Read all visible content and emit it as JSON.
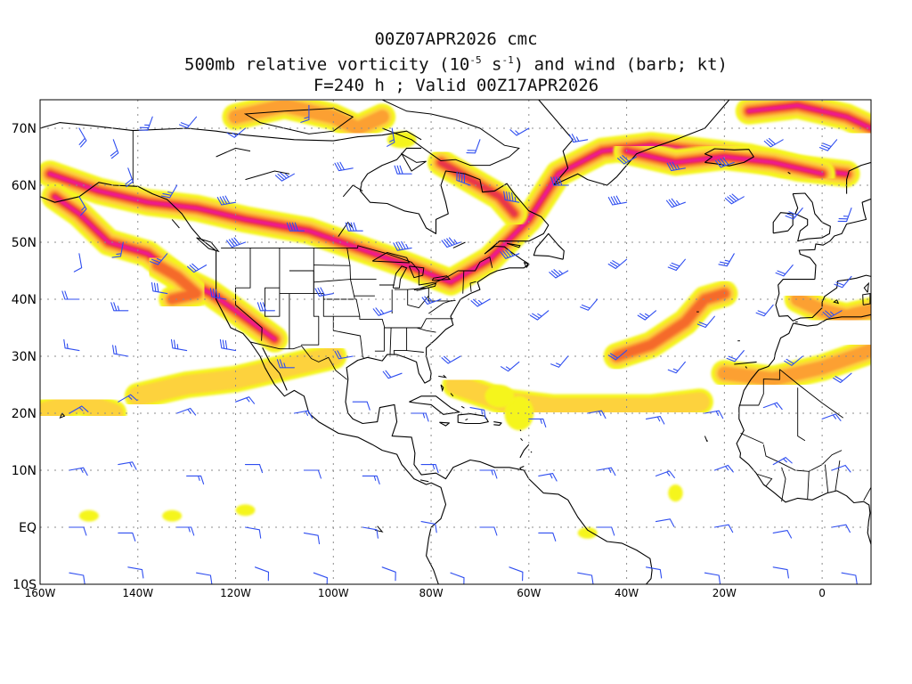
{
  "title": {
    "line1": "00Z07APR2026 cmc",
    "line2_pre": "500mb relative vorticity (10",
    "line2_sup1": "-5",
    "line2_mid": " s",
    "line2_sup2": "-1",
    "line2_post": ") and wind (barb; kt)",
    "line3": "F=240 h ; Valid 00Z17APR2026"
  },
  "map": {
    "lon_range": [
      -160,
      10
    ],
    "lat_range": [
      -10,
      75
    ],
    "lat_ticks": [
      {
        "value": 70,
        "label": "70N"
      },
      {
        "value": 60,
        "label": "60N"
      },
      {
        "value": 50,
        "label": "50N"
      },
      {
        "value": 40,
        "label": "40N"
      },
      {
        "value": 30,
        "label": "30N"
      },
      {
        "value": 20,
        "label": "20N"
      },
      {
        "value": 10,
        "label": "10N"
      },
      {
        "value": 0,
        "label": "EQ"
      },
      {
        "value": -10,
        "label": "10S"
      }
    ],
    "lon_ticks": [
      {
        "value": -160,
        "label": "160W"
      },
      {
        "value": -140,
        "label": "140W"
      },
      {
        "value": -120,
        "label": "120W"
      },
      {
        "value": -100,
        "label": "100W"
      },
      {
        "value": -80,
        "label": "80W"
      },
      {
        "value": -60,
        "label": "60W"
      },
      {
        "value": -40,
        "label": "40W"
      },
      {
        "value": -20,
        "label": "20W"
      },
      {
        "value": 0,
        "label": "0"
      }
    ],
    "colors": {
      "yellow": "#f5f51e",
      "light_orange": "#fdd23c",
      "orange": "#fca033",
      "dark_orange": "#f56a2b",
      "red": "#e8344c",
      "magenta": "#f00aa0",
      "barb": "#2f4ef0",
      "coast": "#000000",
      "grid": "#8c8c8c"
    },
    "vorticity_bands": [
      {
        "name": "alaska-canada-jet",
        "lonlat": [
          [
            -158,
            62
          ],
          [
            -148,
            59
          ],
          [
            -138,
            57
          ],
          [
            -128,
            56
          ],
          [
            -118,
            54
          ],
          [
            -105,
            52
          ],
          [
            -95,
            49
          ],
          [
            -85,
            46
          ],
          [
            -76,
            43
          ],
          [
            -68,
            47
          ],
          [
            -60,
            54
          ],
          [
            -54,
            62
          ],
          [
            -45,
            66
          ],
          [
            -35,
            67
          ],
          [
            -25,
            66
          ],
          [
            -15,
            65
          ],
          [
            -5,
            63
          ],
          [
            5,
            62
          ]
        ],
        "max_level": 5
      },
      {
        "name": "pacific-trough",
        "lonlat": [
          [
            -157,
            58
          ],
          [
            -152,
            55
          ],
          [
            -146,
            50
          ],
          [
            -138,
            48
          ],
          [
            -132,
            44
          ],
          [
            -125,
            41
          ],
          [
            -120,
            38
          ],
          [
            -112,
            33
          ]
        ],
        "max_level": 5
      },
      {
        "name": "pacific-low",
        "lonlat": [
          [
            -136,
            46
          ],
          [
            -132,
            44
          ],
          [
            -128,
            41
          ],
          [
            -133,
            40
          ]
        ],
        "max_level": 3
      },
      {
        "name": "hudson-bay-low",
        "lonlat": [
          [
            -78,
            64
          ],
          [
            -74,
            62
          ],
          [
            -70,
            60
          ],
          [
            -66,
            58
          ],
          [
            -63,
            55
          ]
        ],
        "max_level": 4
      },
      {
        "name": "canadian-arctic",
        "lonlat": [
          [
            -120,
            72
          ],
          [
            -110,
            74
          ],
          [
            -100,
            72
          ],
          [
            -95,
            70
          ],
          [
            -90,
            72
          ]
        ],
        "max_level": 2
      },
      {
        "name": "iceland-band",
        "lonlat": [
          [
            -40,
            66
          ],
          [
            -30,
            64
          ],
          [
            -20,
            65
          ],
          [
            -10,
            64
          ],
          [
            0,
            62
          ]
        ],
        "max_level": 5
      },
      {
        "name": "greenland-north",
        "lonlat": [
          [
            -15,
            73
          ],
          [
            -5,
            74
          ],
          [
            5,
            72
          ],
          [
            10,
            70
          ]
        ],
        "max_level": 5
      },
      {
        "name": "mid-atlantic-jet",
        "lonlat": [
          [
            -42,
            30
          ],
          [
            -35,
            32
          ],
          [
            -28,
            36
          ],
          [
            -24,
            40
          ],
          [
            -20,
            41
          ]
        ],
        "max_level": 3
      },
      {
        "name": "subtropical-atlantic",
        "lonlat": [
          [
            -75,
            25
          ],
          [
            -65,
            22
          ],
          [
            -55,
            21
          ],
          [
            -45,
            21
          ],
          [
            -35,
            21
          ],
          [
            -25,
            22
          ]
        ],
        "max_level": 1
      },
      {
        "name": "pacific-subtropical",
        "lonlat": [
          [
            -140,
            23
          ],
          [
            -130,
            25
          ],
          [
            -120,
            26
          ],
          [
            -110,
            28
          ],
          [
            -100,
            30
          ]
        ],
        "max_level": 1
      },
      {
        "name": "west-pacific-subtropical",
        "lonlat": [
          [
            -160,
            20
          ],
          [
            -152,
            22
          ],
          [
            -145,
            20
          ]
        ],
        "max_level": 1
      },
      {
        "name": "north-africa-band",
        "lonlat": [
          [
            -20,
            27
          ],
          [
            -10,
            26
          ],
          [
            0,
            28
          ],
          [
            10,
            31
          ]
        ],
        "max_level": 2
      },
      {
        "name": "iberia-band",
        "lonlat": [
          [
            -5,
            40
          ],
          [
            0,
            38
          ],
          [
            5,
            37
          ],
          [
            10,
            38
          ]
        ],
        "max_level": 2
      }
    ],
    "vorticity_blobs": [
      {
        "lon": -86,
        "lat": 68,
        "rx": 3,
        "ry": 1.5,
        "level": 0
      },
      {
        "lon": -150,
        "lat": 2,
        "rx": 2,
        "ry": 1,
        "level": 0
      },
      {
        "lon": -133,
        "lat": 2,
        "rx": 2,
        "ry": 1,
        "level": 0
      },
      {
        "lon": -118,
        "lat": 3,
        "rx": 2,
        "ry": 1,
        "level": 0
      },
      {
        "lon": -62,
        "lat": 20,
        "rx": 3,
        "ry": 3,
        "level": 0
      },
      {
        "lon": -66,
        "lat": 23,
        "rx": 3,
        "ry": 2,
        "level": 0
      },
      {
        "lon": -30,
        "lat": 6,
        "rx": 1.5,
        "ry": 1.5,
        "level": 0
      },
      {
        "lon": -48,
        "lat": -1,
        "rx": 2,
        "ry": 1,
        "level": 0
      }
    ],
    "wind_barbs": [
      [
        -152,
        70,
        150,
        20
      ],
      [
        -145,
        68,
        160,
        20
      ],
      [
        -137,
        72,
        200,
        25
      ],
      [
        -128,
        72,
        220,
        20
      ],
      [
        -118,
        70,
        230,
        15
      ],
      [
        -105,
        74,
        180,
        15
      ],
      [
        -88,
        70,
        170,
        15
      ],
      [
        -70,
        68,
        200,
        20
      ],
      [
        -60,
        70,
        240,
        15
      ],
      [
        -48,
        68,
        260,
        25
      ],
      [
        -38,
        65,
        240,
        30
      ],
      [
        -28,
        63,
        260,
        35
      ],
      [
        -18,
        64,
        250,
        40
      ],
      [
        -8,
        68,
        240,
        30
      ],
      [
        3,
        68,
        220,
        30
      ],
      [
        -152,
        58,
        150,
        15
      ],
      [
        -142,
        63,
        160,
        20
      ],
      [
        -132,
        60,
        210,
        25
      ],
      [
        -120,
        57,
        260,
        40
      ],
      [
        -108,
        62,
        240,
        35
      ],
      [
        -96,
        63,
        260,
        30
      ],
      [
        -84,
        62,
        270,
        30
      ],
      [
        -72,
        60,
        290,
        40
      ],
      [
        -62,
        57,
        280,
        45
      ],
      [
        -52,
        60,
        270,
        40
      ],
      [
        -40,
        57,
        260,
        40
      ],
      [
        -28,
        57,
        250,
        35
      ],
      [
        -16,
        58,
        240,
        40
      ],
      [
        -4,
        56,
        220,
        30
      ],
      [
        6,
        56,
        200,
        25
      ],
      [
        -152,
        48,
        170,
        10
      ],
      [
        -143,
        50,
        190,
        15
      ],
      [
        -134,
        48,
        220,
        25
      ],
      [
        -126,
        46,
        240,
        30
      ],
      [
        -118,
        50,
        250,
        40
      ],
      [
        -106,
        52,
        270,
        40
      ],
      [
        -94,
        52,
        270,
        40
      ],
      [
        -84,
        49,
        260,
        45
      ],
      [
        -74,
        50,
        250,
        45
      ],
      [
        -62,
        48,
        250,
        40
      ],
      [
        -52,
        45,
        240,
        35
      ],
      [
        -40,
        47,
        230,
        30
      ],
      [
        -28,
        47,
        220,
        30
      ],
      [
        -18,
        48,
        210,
        25
      ],
      [
        -6,
        46,
        220,
        20
      ],
      [
        6,
        44,
        220,
        20
      ],
      [
        -152,
        40,
        270,
        20
      ],
      [
        -142,
        38,
        270,
        25
      ],
      [
        -134,
        41,
        280,
        30
      ],
      [
        -122,
        40,
        280,
        35
      ],
      [
        -112,
        38,
        270,
        30
      ],
      [
        -100,
        41,
        260,
        30
      ],
      [
        -88,
        38,
        250,
        25
      ],
      [
        -78,
        40,
        250,
        25
      ],
      [
        -68,
        40,
        240,
        25
      ],
      [
        -56,
        38,
        230,
        25
      ],
      [
        -46,
        40,
        220,
        20
      ],
      [
        -34,
        38,
        230,
        25
      ],
      [
        -22,
        37,
        220,
        20
      ],
      [
        -10,
        39,
        220,
        20
      ],
      [
        4,
        38,
        240,
        25
      ],
      [
        -152,
        31,
        280,
        15
      ],
      [
        -142,
        30,
        280,
        20
      ],
      [
        -130,
        31,
        280,
        25
      ],
      [
        -120,
        31,
        280,
        30
      ],
      [
        -108,
        28,
        270,
        25
      ],
      [
        -96,
        30,
        260,
        20
      ],
      [
        -86,
        27,
        250,
        20
      ],
      [
        -74,
        30,
        240,
        20
      ],
      [
        -62,
        29,
        230,
        15
      ],
      [
        -52,
        30,
        220,
        15
      ],
      [
        -40,
        31,
        230,
        20
      ],
      [
        -28,
        29,
        220,
        15
      ],
      [
        -16,
        31,
        220,
        20
      ],
      [
        -4,
        30,
        230,
        20
      ],
      [
        6,
        27,
        230,
        20
      ],
      [
        -154,
        20,
        60,
        15
      ],
      [
        -144,
        22,
        60,
        15
      ],
      [
        -132,
        20,
        70,
        15
      ],
      [
        -120,
        22,
        70,
        15
      ],
      [
        -108,
        20,
        80,
        15
      ],
      [
        -96,
        22,
        90,
        10
      ],
      [
        -84,
        20,
        90,
        15
      ],
      [
        -72,
        21,
        100,
        15
      ],
      [
        -60,
        19,
        90,
        15
      ],
      [
        -48,
        20,
        80,
        15
      ],
      [
        -36,
        19,
        80,
        15
      ],
      [
        -24,
        20,
        80,
        15
      ],
      [
        -12,
        21,
        70,
        15
      ],
      [
        0,
        19,
        70,
        15
      ],
      [
        -154,
        10,
        80,
        15
      ],
      [
        -144,
        11,
        80,
        15
      ],
      [
        -130,
        9,
        90,
        15
      ],
      [
        -118,
        11,
        90,
        10
      ],
      [
        -106,
        10,
        90,
        10
      ],
      [
        -94,
        9,
        90,
        15
      ],
      [
        -82,
        11,
        90,
        15
      ],
      [
        -70,
        10,
        90,
        15
      ],
      [
        -58,
        9,
        80,
        15
      ],
      [
        -46,
        10,
        80,
        15
      ],
      [
        -34,
        9,
        70,
        15
      ],
      [
        -22,
        10,
        70,
        15
      ],
      [
        -10,
        11,
        60,
        15
      ],
      [
        2,
        10,
        70,
        10
      ],
      [
        -154,
        0,
        90,
        10
      ],
      [
        -144,
        -1,
        90,
        10
      ],
      [
        -132,
        0,
        90,
        15
      ],
      [
        -118,
        0,
        100,
        10
      ],
      [
        -106,
        -1,
        100,
        10
      ],
      [
        -94,
        0,
        100,
        10
      ],
      [
        -82,
        1,
        100,
        10
      ],
      [
        -70,
        0,
        90,
        10
      ],
      [
        -58,
        -1,
        90,
        10
      ],
      [
        -46,
        0,
        90,
        10
      ],
      [
        -34,
        1,
        80,
        10
      ],
      [
        -22,
        0,
        80,
        10
      ],
      [
        -10,
        -1,
        80,
        10
      ],
      [
        2,
        0,
        80,
        10
      ],
      [
        -154,
        -8,
        100,
        10
      ],
      [
        -142,
        -7,
        100,
        10
      ],
      [
        -128,
        -8,
        100,
        10
      ],
      [
        -116,
        -7,
        110,
        10
      ],
      [
        -104,
        -8,
        110,
        10
      ],
      [
        -90,
        -7,
        110,
        10
      ],
      [
        -76,
        -8,
        110,
        10
      ],
      [
        -64,
        -7,
        110,
        10
      ],
      [
        -50,
        -8,
        100,
        10
      ],
      [
        -36,
        -7,
        100,
        10
      ],
      [
        -24,
        -8,
        100,
        10
      ],
      [
        -10,
        -7,
        100,
        10
      ],
      [
        4,
        -8,
        100,
        10
      ]
    ]
  }
}
